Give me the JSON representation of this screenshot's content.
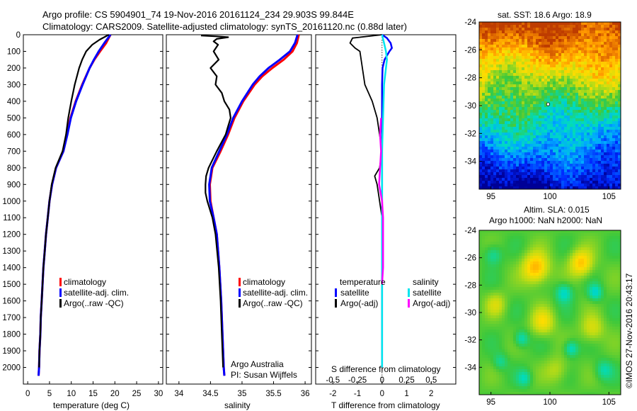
{
  "header": {
    "title_line1": "Argo profile: CS 5904901_74 19-Nov-2016 20161124_234 29.903S 99.844E",
    "title_line2": "Climatology: CARS2009. Satellite-adjusted climatology: synTS_20161120.nc (0.88d later)"
  },
  "colors": {
    "climatology": "#ff0000",
    "satellite": "#0000ff",
    "argo": "#000000",
    "satellite_s": "#00e5ee",
    "argo_adj_s": "#ff00ff"
  },
  "chart_data": [
    {
      "type": "line",
      "name": "temperature-profile",
      "xlabel": "temperature (deg C)",
      "ylabel": "",
      "xlim": [
        -1,
        31
      ],
      "ylim": [
        2100,
        0
      ],
      "xticks": [
        "0",
        "5",
        "10",
        "15",
        "20",
        "25",
        "30"
      ],
      "yticks": [
        "0",
        "100",
        "200",
        "300",
        "400",
        "500",
        "600",
        "700",
        "800",
        "900",
        "1000",
        "1100",
        "1200",
        "1300",
        "1400",
        "1500",
        "1600",
        "1700",
        "1800",
        "1900",
        "2000"
      ],
      "legend": [
        "climatology",
        "satellite-adj. clim.",
        "Argo(..raw -QC)"
      ],
      "legend_loc": "lower-right",
      "series": [
        {
          "name": "climatology",
          "depth": [
            0,
            50,
            100,
            150,
            200,
            300,
            400,
            500,
            600,
            700,
            800,
            900,
            1000,
            1100,
            1200,
            1300,
            1400,
            1500,
            1600,
            1700,
            1800,
            1900,
            2000,
            2050
          ],
          "values": [
            19,
            18,
            16.6,
            15.3,
            14.2,
            12.5,
            11,
            9.8,
            9,
            8.2,
            6.5,
            5.6,
            5,
            4.6,
            4.2,
            3.9,
            3.6,
            3.4,
            3.2,
            3,
            2.9,
            2.7,
            2.6,
            2.5
          ]
        },
        {
          "name": "satellite-adj. clim.",
          "depth": [
            0,
            50,
            100,
            150,
            200,
            300,
            400,
            500,
            600,
            700,
            800,
            900,
            1000,
            1100,
            1200,
            1300,
            1400,
            1500,
            1600,
            1700,
            1800,
            1900,
            2000,
            2050
          ],
          "values": [
            19,
            17.6,
            16.3,
            15.2,
            14.2,
            12.6,
            11.1,
            9.9,
            9.1,
            8.2,
            6.5,
            5.6,
            5,
            4.6,
            4.2,
            3.9,
            3.6,
            3.4,
            3.2,
            3,
            2.9,
            2.7,
            2.6,
            2.5
          ]
        },
        {
          "name": "Argo(..raw -QC)",
          "depth": [
            0,
            30,
            60,
            100,
            150,
            200,
            300,
            400,
            500,
            600,
            700,
            800,
            900,
            1000,
            1100,
            1200,
            1300,
            1400,
            1500,
            1600,
            1700,
            1800,
            1900,
            2000
          ],
          "values": [
            18.6,
            16.5,
            14.8,
            13.4,
            12.5,
            11.8,
            10.8,
            10,
            9.3,
            8.8,
            8,
            6.4,
            5.5,
            5,
            4.6,
            4.2,
            3.9,
            3.6,
            3.4,
            3.2,
            3,
            2.9,
            2.7,
            2.6
          ]
        }
      ]
    },
    {
      "type": "line",
      "name": "salinity-profile",
      "xlabel": "salinity",
      "xlim": [
        33.8,
        36.1
      ],
      "ylim": [
        2100,
        0
      ],
      "xticks": [
        "34",
        "34.5",
        "35",
        "35.5",
        "36"
      ],
      "legend": [
        "climatology",
        "satellite-adj. clim.",
        "Argo(..raw -QC)"
      ],
      "legend_loc": "lower-right",
      "annotation": [
        "Argo Australia",
        "PI: Susan Wijffels"
      ],
      "series": [
        {
          "name": "climatology",
          "depth": [
            0,
            50,
            100,
            150,
            200,
            250,
            300,
            400,
            500,
            600,
            700,
            800,
            900,
            1000,
            1100,
            1200,
            1400,
            1600,
            1800,
            2000,
            2050
          ],
          "values": [
            35.9,
            35.87,
            35.8,
            35.66,
            35.48,
            35.32,
            35.2,
            35.02,
            34.88,
            34.78,
            34.66,
            34.53,
            34.49,
            34.5,
            34.55,
            34.6,
            34.64,
            34.67,
            34.69,
            34.71,
            34.72
          ]
        },
        {
          "name": "satellite-adj. clim.",
          "depth": [
            0,
            50,
            100,
            150,
            200,
            250,
            300,
            400,
            500,
            600,
            700,
            800,
            900,
            1000,
            1100,
            1200,
            1400,
            1600,
            1800,
            2000,
            2050
          ],
          "values": [
            35.88,
            35.84,
            35.76,
            35.6,
            35.42,
            35.28,
            35.17,
            35.0,
            34.86,
            34.76,
            34.64,
            34.52,
            34.48,
            34.49,
            34.55,
            34.6,
            34.64,
            34.67,
            34.69,
            34.71,
            34.72
          ]
        },
        {
          "name": "Argo(..raw -QC)",
          "depth": [
            5,
            10,
            15,
            25,
            40,
            60,
            100,
            150,
            200,
            250,
            300,
            350,
            400,
            450,
            500,
            550,
            600,
            700,
            800,
            850,
            900,
            950,
            1000,
            1100,
            1200,
            1400,
            1600,
            1800,
            2000
          ],
          "values": [
            34.35,
            34.6,
            34.78,
            34.6,
            34.55,
            34.62,
            34.55,
            34.63,
            34.5,
            34.6,
            34.58,
            34.68,
            34.72,
            34.8,
            34.82,
            34.78,
            34.74,
            34.6,
            34.47,
            34.43,
            34.42,
            34.42,
            34.45,
            34.53,
            34.58,
            34.63,
            34.66,
            34.68,
            34.7
          ]
        }
      ]
    },
    {
      "type": "line",
      "name": "difference-profile",
      "xlabel": "T difference from climatology",
      "xlabel_top": "S difference from climatology",
      "xlim": [
        -2.7,
        3
      ],
      "ylim": [
        2100,
        0
      ],
      "xticks": [
        "-2",
        "-1",
        "0",
        "1",
        "2"
      ],
      "xticks_top": [
        "-0.5",
        "-0.25",
        "0",
        "0.25",
        "0.5"
      ],
      "legend_headers": [
        "temperature",
        "salinity"
      ],
      "legend": [
        "satellite",
        "Argo(-adj)",
        "satellite",
        "Argo(-adj)"
      ],
      "series": [
        {
          "name": "satellite T",
          "depth": [
            0,
            20,
            50,
            80,
            100,
            150,
            200,
            300,
            500,
            800,
            1000,
            1500,
            2000
          ],
          "values": [
            0,
            0.2,
            0.35,
            0.4,
            0.3,
            0.1,
            0.02,
            0,
            0,
            0,
            0,
            0,
            0
          ]
        },
        {
          "name": "Argo(-adj) T",
          "depth": [
            0,
            20,
            50,
            80,
            100,
            200,
            300,
            400,
            500,
            600,
            700,
            800,
            850,
            900,
            1000,
            1100,
            1200,
            1300,
            1400,
            1500,
            2000
          ],
          "values": [
            0,
            -1.2,
            -1.3,
            -1.1,
            -0.9,
            -0.8,
            -0.7,
            -0.4,
            -0.2,
            -0.1,
            0,
            -0.1,
            -0.3,
            -0.2,
            -0.1,
            0,
            0,
            0,
            0,
            0,
            0
          ]
        },
        {
          "name": "satellite S",
          "depth": [
            0,
            50,
            100,
            150,
            200,
            300,
            500,
            700,
            900,
            1100,
            1500,
            2000
          ],
          "values": [
            0,
            0.02,
            0.04,
            0.05,
            0.04,
            0.02,
            0.01,
            0,
            0,
            0,
            0,
            0
          ]
        },
        {
          "name": "Argo(-adj) S",
          "depth": [
            500,
            600,
            700,
            800,
            900,
            1000,
            1100,
            1200,
            1300,
            1400,
            1500
          ],
          "values": [
            -0.01,
            -0.02,
            -0.01,
            -0.02,
            -0.03,
            0.0,
            0.01,
            0.01,
            0.01,
            0.01,
            0
          ]
        }
      ]
    },
    {
      "type": "heatmap",
      "name": "sst-map",
      "title": "sat. SST: 18.6 Argo: 18.9",
      "xlim": [
        94,
        106
      ],
      "ylim": [
        -36,
        -24
      ],
      "xticks": [
        "95",
        "100",
        "105"
      ],
      "yticks": [
        "-24",
        "-26",
        "-28",
        "-30",
        "-32",
        "-34"
      ],
      "marker": {
        "lon": 99.844,
        "lat": -29.903
      }
    },
    {
      "type": "heatmap",
      "name": "sla-map",
      "title": "Altim. SLA: 0.015",
      "subtitle": "Argo h1000: NaN h2000: NaN",
      "xlim": [
        94,
        106
      ],
      "ylim": [
        -36,
        -24
      ],
      "xticks": [
        "95",
        "100",
        "105"
      ],
      "yticks": [
        "-24",
        "-26",
        "-28",
        "-30",
        "-32",
        "-34"
      ]
    }
  ],
  "footer": {
    "credit": "©IMOS 27-Nov-2016 20:43:17"
  }
}
